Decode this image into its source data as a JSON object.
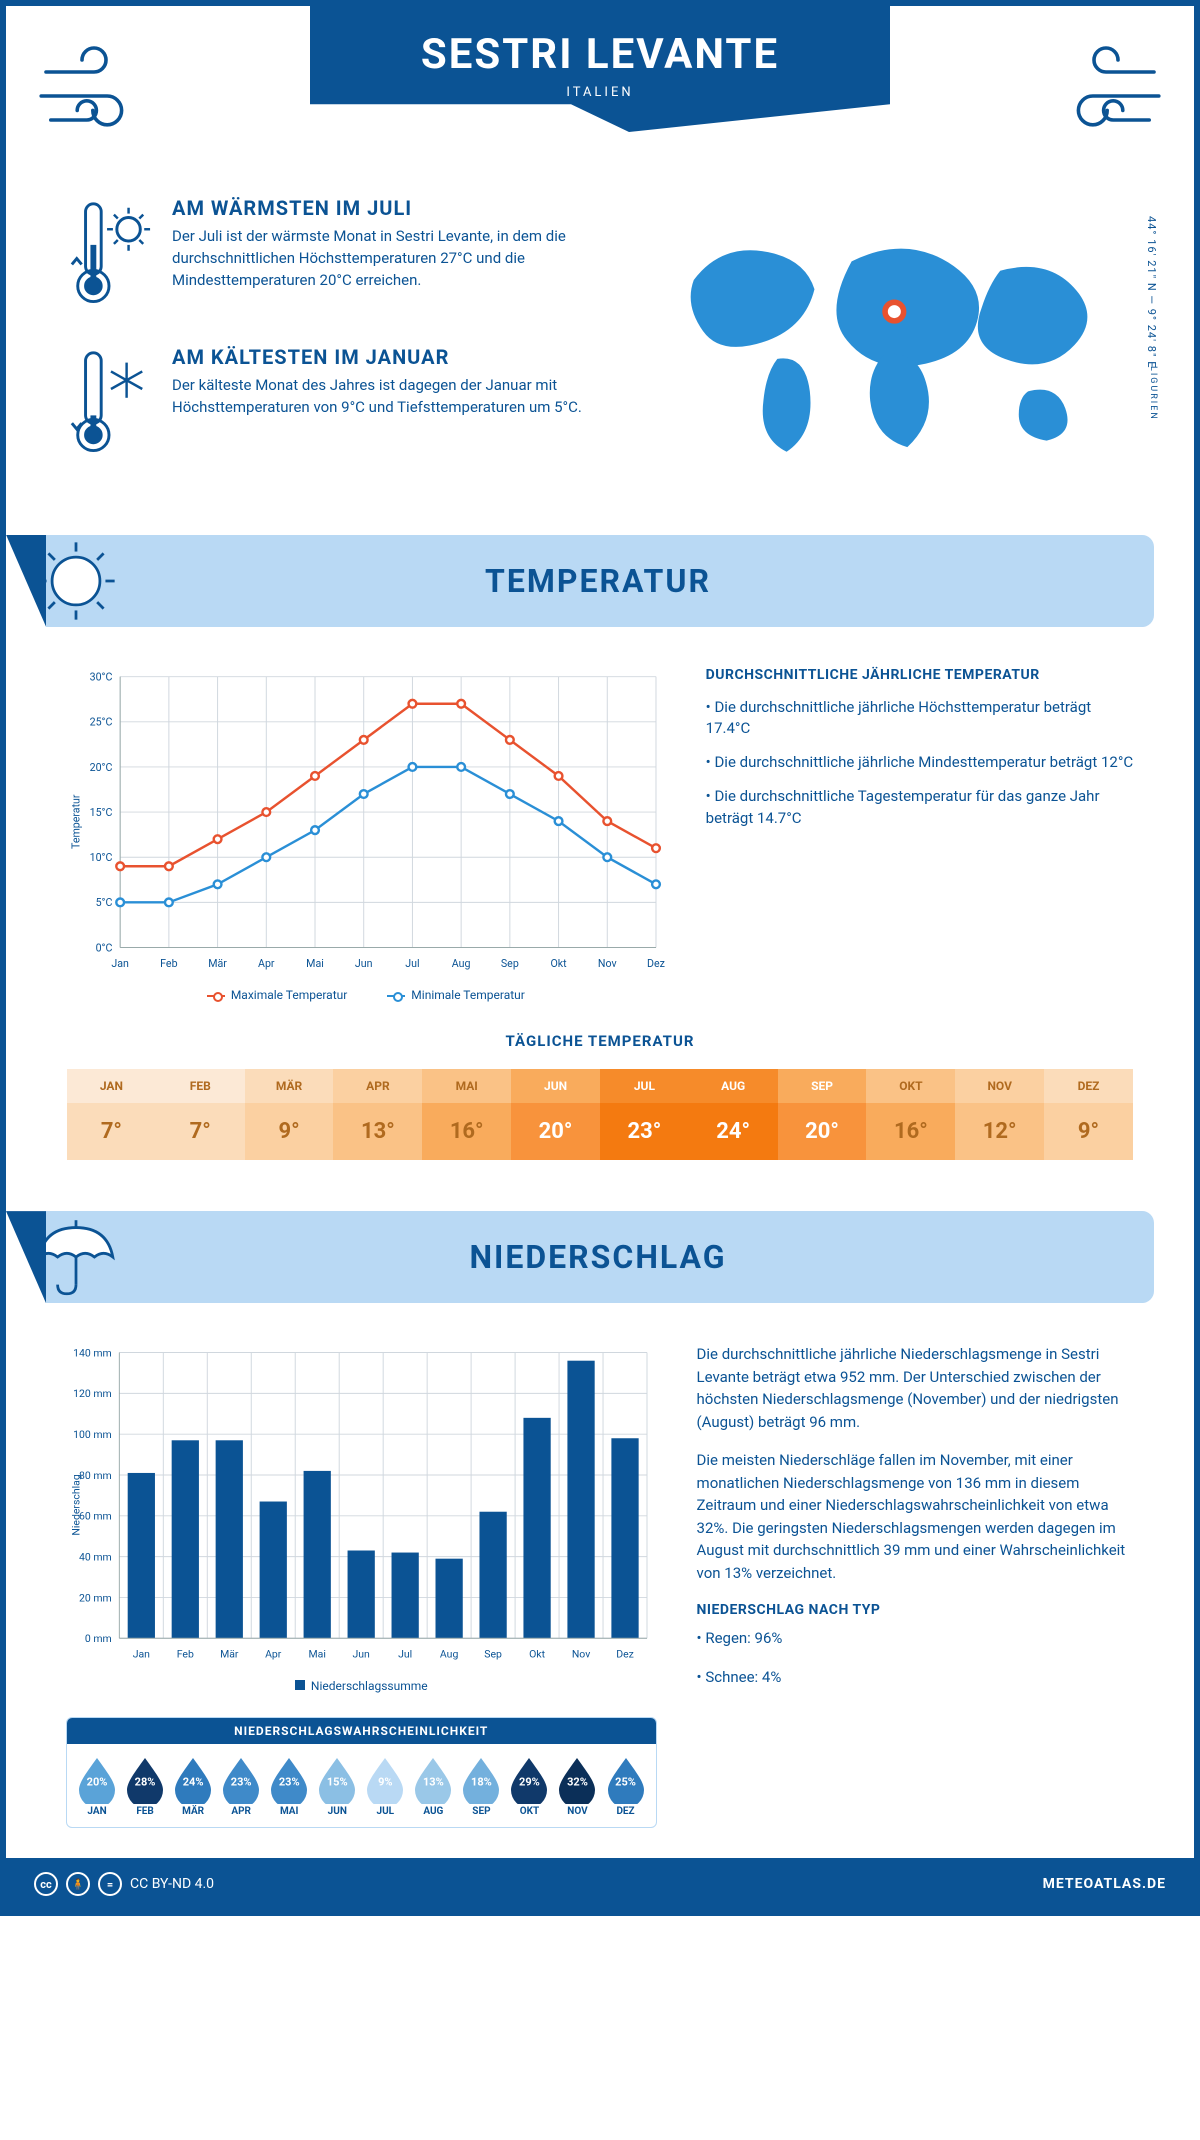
{
  "colors": {
    "primary": "#0b5394",
    "band_light": "#b9d9f4",
    "max_line": "#e8522f",
    "min_line": "#2a8fd6",
    "grid": "#d0d7de"
  },
  "header": {
    "title": "SESTRI LEVANTE",
    "subtitle": "ITALIEN",
    "coords": "44° 16' 21\" N — 9° 24' 8\" E",
    "region": "LIGURIEN"
  },
  "facts": {
    "warm": {
      "title": "AM WÄRMSTEN IM JULI",
      "text": "Der Juli ist der wärmste Monat in Sestri Levante, in dem die durchschnittlichen Höchsttemperaturen 27°C und die Mindesttemperaturen 20°C erreichen."
    },
    "cold": {
      "title": "AM KÄLTESTEN IM JANUAR",
      "text": "Der kälteste Monat des Jahres ist dagegen der Januar mit Höchsttemperaturen von 9°C und Tiefsttemperaturen um 5°C."
    }
  },
  "months": [
    "Jan",
    "Feb",
    "Mär",
    "Apr",
    "Mai",
    "Jun",
    "Jul",
    "Aug",
    "Sep",
    "Okt",
    "Nov",
    "Dez"
  ],
  "months_upper": [
    "JAN",
    "FEB",
    "MÄR",
    "APR",
    "MAI",
    "JUN",
    "JUL",
    "AUG",
    "SEP",
    "OKT",
    "NOV",
    "DEZ"
  ],
  "temperature": {
    "section_title": "TEMPERATUR",
    "y_label": "Temperatur",
    "y_ticks": [
      "0°C",
      "5°C",
      "10°C",
      "15°C",
      "20°C",
      "25°C",
      "30°C"
    ],
    "ylim": [
      0,
      30
    ],
    "max_series": [
      9,
      9,
      12,
      15,
      19,
      23,
      27,
      27,
      23,
      19,
      14,
      11
    ],
    "min_series": [
      5,
      5,
      7,
      10,
      13,
      17,
      20,
      20,
      17,
      14,
      10,
      7
    ],
    "legend_max": "Maximale Temperatur",
    "legend_min": "Minimale Temperatur",
    "side": {
      "title": "DURCHSCHNITTLICHE JÄHRLICHE TEMPERATUR",
      "b1": "• Die durchschnittliche jährliche Höchsttemperatur beträgt 17.4°C",
      "b2": "• Die durchschnittliche jährliche Mindesttemperatur beträgt 12°C",
      "b3": "• Die durchschnittliche Tagestemperatur für das ganze Jahr beträgt 14.7°C"
    },
    "daily": {
      "title": "TÄGLICHE TEMPERATUR",
      "values": [
        "7°",
        "7°",
        "9°",
        "13°",
        "16°",
        "20°",
        "23°",
        "24°",
        "20°",
        "16°",
        "12°",
        "9°"
      ],
      "head_colors": [
        "#fce9d6",
        "#fce9d6",
        "#fbdcba",
        "#fbd0a1",
        "#fac286",
        "#f9ab5c",
        "#f68b2a",
        "#f68b2a",
        "#f9ab5c",
        "#fac286",
        "#fbd0a1",
        "#fbdcba"
      ],
      "body_colors": [
        "#fbdcba",
        "#fbdcba",
        "#fbd0a1",
        "#fac286",
        "#f9ab5c",
        "#f8933c",
        "#f47a10",
        "#f47a10",
        "#f8933c",
        "#f9ab5c",
        "#fac286",
        "#fbd0a1"
      ],
      "text_colors": [
        "#b06a1f",
        "#b06a1f",
        "#b06a1f",
        "#b06a1f",
        "#b06a1f",
        "#ffffff",
        "#ffffff",
        "#ffffff",
        "#ffffff",
        "#b06a1f",
        "#b06a1f",
        "#b06a1f"
      ]
    }
  },
  "precip": {
    "section_title": "NIEDERSCHLAG",
    "y_label": "Niederschlag",
    "y_ticks": [
      "0 mm",
      "20 mm",
      "40 mm",
      "60 mm",
      "80 mm",
      "100 mm",
      "120 mm",
      "140 mm"
    ],
    "ylim": [
      0,
      140
    ],
    "values": [
      81,
      97,
      97,
      67,
      82,
      43,
      42,
      39,
      62,
      108,
      136,
      98
    ],
    "legend": "Niederschlagssumme",
    "text1": "Die durchschnittliche jährliche Niederschlagsmenge in Sestri Levante beträgt etwa 952 mm. Der Unterschied zwischen der höchsten Niederschlagsmenge (November) und der niedrigsten (August) beträgt 96 mm.",
    "text2": "Die meisten Niederschläge fallen im November, mit einer monatlichen Niederschlagsmenge von 136 mm in diesem Zeitraum und einer Niederschlagswahrscheinlichkeit von etwa 32%. Die geringsten Niederschlagsmengen werden dagegen im August mit durchschnittlich 39 mm und einer Wahrscheinlichkeit von 13% verzeichnet.",
    "type_title": "NIEDERSCHLAG NACH TYP",
    "type_b1": "• Regen: 96%",
    "type_b2": "• Schnee: 4%",
    "prob": {
      "title": "NIEDERSCHLAGSWAHRSCHEINLICHKEIT",
      "values": [
        "20%",
        "28%",
        "24%",
        "23%",
        "23%",
        "15%",
        "9%",
        "13%",
        "18%",
        "29%",
        "32%",
        "25%"
      ],
      "colors": [
        "#5aa3d8",
        "#10396a",
        "#2f7bbd",
        "#3f8ac9",
        "#3f8ac9",
        "#8bbfe4",
        "#b9d9f4",
        "#9ac8e8",
        "#73b0dd",
        "#10396a",
        "#0b2f58",
        "#2f7bbd"
      ]
    }
  },
  "footer": {
    "license": "CC BY-ND 4.0",
    "site": "METEOATLAS.DE"
  }
}
